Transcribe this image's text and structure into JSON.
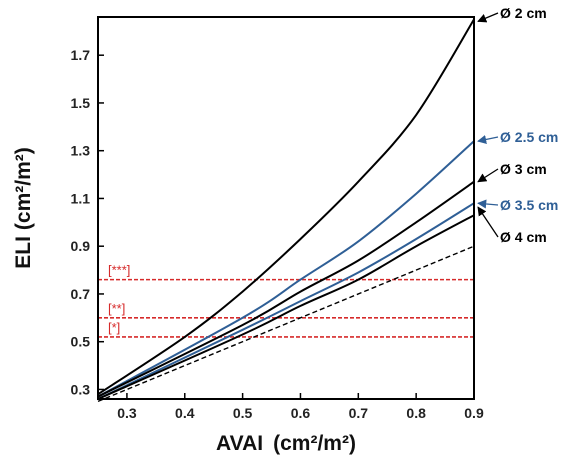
{
  "chart_data": {
    "type": "line",
    "title": "",
    "xlabel": "AVAI",
    "xlabel_unit": "(cm²/m²)",
    "ylabel": "ELI",
    "ylabel_unit": "(cm²/m²)",
    "xlim": [
      0.25,
      0.9
    ],
    "ylim": [
      0.26,
      1.86
    ],
    "xticks": [
      {
        "value": 0.3,
        "label": "0.3"
      },
      {
        "value": 0.4,
        "label": "0.4"
      },
      {
        "value": 0.5,
        "label": "0.5"
      },
      {
        "value": 0.6,
        "label": "0.6"
      },
      {
        "value": 0.7,
        "label": "0.7"
      },
      {
        "value": 0.8,
        "label": "0.8"
      },
      {
        "value": 0.9,
        "label": "0.9"
      }
    ],
    "yticks": [
      {
        "value": 0.3,
        "label": "0.3"
      },
      {
        "value": 0.5,
        "label": "0.5"
      },
      {
        "value": 0.7,
        "label": "0.7"
      },
      {
        "value": 0.9,
        "label": "0.9"
      },
      {
        "value": 1.1,
        "label": "1.1"
      },
      {
        "value": 1.3,
        "label": "1.3"
      },
      {
        "value": 1.5,
        "label": "1.5"
      },
      {
        "value": 1.7,
        "label": "1.7"
      }
    ],
    "grid": false,
    "series": [
      {
        "name": "Ø 2 cm",
        "color": "#000000",
        "dash": "none",
        "x": [
          0.25,
          0.4,
          0.5,
          0.6,
          0.7,
          0.8,
          0.9
        ],
        "y": [
          0.28,
          0.52,
          0.71,
          0.93,
          1.17,
          1.45,
          1.85
        ],
        "label_color": "#000000"
      },
      {
        "name": "Ø 2.5 cm",
        "color": "#2f5f96",
        "dash": "none",
        "x": [
          0.25,
          0.5,
          0.6,
          0.7,
          0.8,
          0.9
        ],
        "y": [
          0.27,
          0.6,
          0.76,
          0.92,
          1.12,
          1.34
        ],
        "label_color": "#2f5f96"
      },
      {
        "name": "Ø 3 cm",
        "color": "#000000",
        "dash": "none",
        "x": [
          0.25,
          0.5,
          0.6,
          0.7,
          0.8,
          0.9
        ],
        "y": [
          0.27,
          0.57,
          0.71,
          0.84,
          1.0,
          1.17
        ],
        "label_color": "#000000"
      },
      {
        "name": "Ø 3.5 cm",
        "color": "#2f5f96",
        "dash": "none",
        "x": [
          0.25,
          0.5,
          0.6,
          0.7,
          0.8,
          0.9
        ],
        "y": [
          0.26,
          0.55,
          0.67,
          0.79,
          0.93,
          1.08
        ],
        "label_color": "#2f5f96"
      },
      {
        "name": "Ø 4 cm",
        "color": "#000000",
        "dash": "none",
        "x": [
          0.25,
          0.5,
          0.6,
          0.7,
          0.8,
          0.9
        ],
        "y": [
          0.26,
          0.53,
          0.65,
          0.76,
          0.9,
          1.03
        ],
        "label_color": "#000000"
      },
      {
        "name": "",
        "color": "#000000",
        "dash": "5,3",
        "x": [
          0.25,
          0.9
        ],
        "y": [
          0.25,
          0.9
        ]
      }
    ],
    "curve_labels": [
      {
        "text": "Ø 2 cm",
        "series": 0,
        "color": "#000000"
      },
      {
        "text": "Ø 2.5 cm",
        "series": 1,
        "color": "#2f5f96"
      },
      {
        "text": "Ø 3 cm",
        "series": 2,
        "color": "#000000"
      },
      {
        "text": "Ø 3.5 cm",
        "series": 3,
        "color": "#2f5f96"
      },
      {
        "text": "Ø 4 cm",
        "series": 4,
        "color": "#000000"
      }
    ],
    "reference_lines": [
      {
        "label": "[***]",
        "y": 0.76,
        "color": "#d62a2a"
      },
      {
        "label": "[**]",
        "y": 0.6,
        "color": "#d62a2a"
      },
      {
        "label": "[*]",
        "y": 0.52,
        "color": "#d62a2a"
      }
    ]
  }
}
